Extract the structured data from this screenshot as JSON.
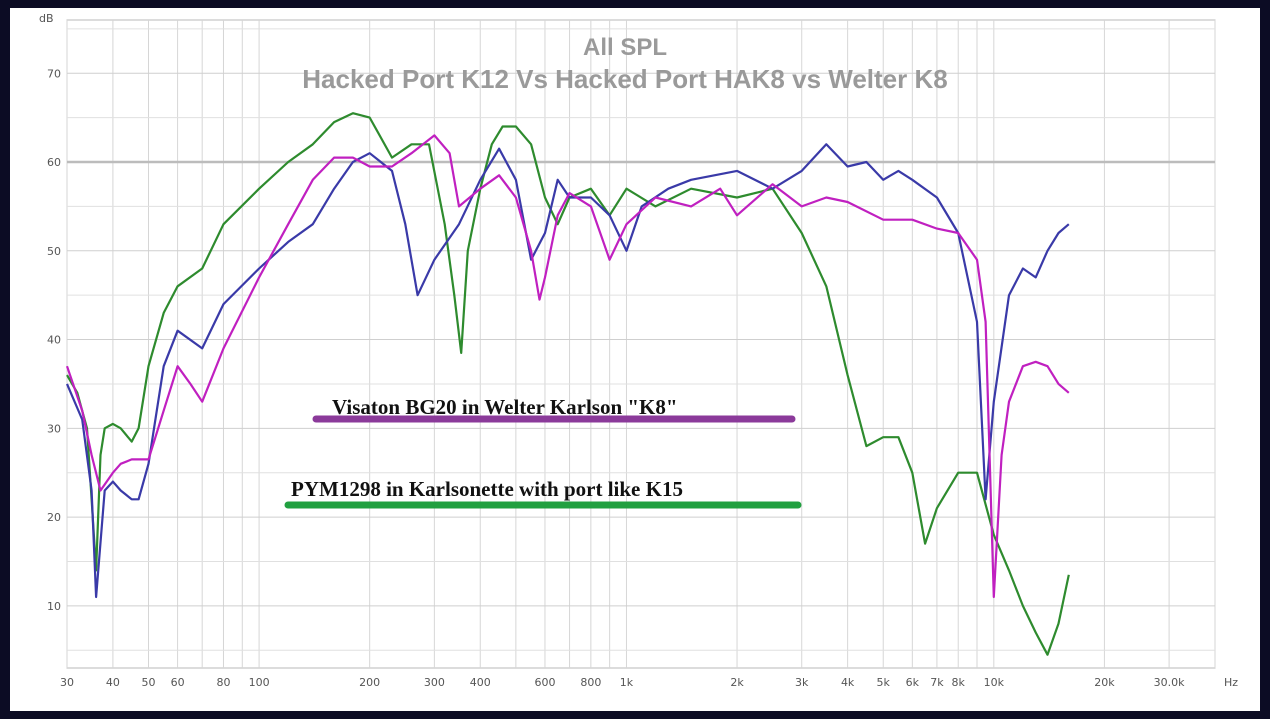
{
  "chart_data": {
    "type": "line",
    "title": "All SPL",
    "subtitle": "Hacked Port K12 Vs Hacked Port HAK8 vs Welter K8",
    "ylabel": "dB",
    "xlabel": "Hz",
    "x_scale": "log",
    "xlim": [
      30,
      40000
    ],
    "ylim": [
      3,
      76
    ],
    "grid": true,
    "y_ticks": [
      {
        "value": 10,
        "label": "10"
      },
      {
        "value": 20,
        "label": "20"
      },
      {
        "value": 30,
        "label": "30"
      },
      {
        "value": 40,
        "label": "40"
      },
      {
        "value": 50,
        "label": "50"
      },
      {
        "value": 60,
        "label": "60"
      },
      {
        "value": 70,
        "label": "70"
      }
    ],
    "y_unit_label": "dB",
    "x_ticks": [
      {
        "value": 30,
        "label": "30"
      },
      {
        "value": 40,
        "label": "40"
      },
      {
        "value": 50,
        "label": "50"
      },
      {
        "value": 60,
        "label": "60"
      },
      {
        "value": 80,
        "label": "80"
      },
      {
        "value": 100,
        "label": "100"
      },
      {
        "value": 200,
        "label": "200"
      },
      {
        "value": 300,
        "label": "300"
      },
      {
        "value": 400,
        "label": "400"
      },
      {
        "value": 600,
        "label": "600"
      },
      {
        "value": 800,
        "label": "800"
      },
      {
        "value": 1000,
        "label": "1k"
      },
      {
        "value": 2000,
        "label": "2k"
      },
      {
        "value": 3000,
        "label": "3k"
      },
      {
        "value": 4000,
        "label": "4k"
      },
      {
        "value": 5000,
        "label": "5k"
      },
      {
        "value": 6000,
        "label": "6k"
      },
      {
        "value": 7000,
        "label": "7k"
      },
      {
        "value": 8000,
        "label": "8k"
      },
      {
        "value": 10000,
        "label": "10k"
      },
      {
        "value": 20000,
        "label": "20k"
      },
      {
        "value": 30000,
        "label": "30.0k"
      }
    ],
    "x_unit_label": "Hz",
    "annotations": [
      {
        "text": "Visaton BG20 in Welter Karlson \"K8\"",
        "color": "#8b3a9a"
      },
      {
        "text": "PYM1298 in Karlsonette with port like K15",
        "color": "#21a040"
      }
    ],
    "series": [
      {
        "color": "#2e8b2e",
        "points": [
          [
            30,
            36
          ],
          [
            32,
            34
          ],
          [
            34,
            30
          ],
          [
            35,
            22
          ],
          [
            36,
            14
          ],
          [
            37,
            27
          ],
          [
            38,
            30
          ],
          [
            40,
            30.5
          ],
          [
            42,
            30
          ],
          [
            45,
            28.5
          ],
          [
            47,
            30
          ],
          [
            50,
            37
          ],
          [
            55,
            43
          ],
          [
            60,
            46
          ],
          [
            70,
            48
          ],
          [
            80,
            53
          ],
          [
            100,
            57
          ],
          [
            120,
            60
          ],
          [
            140,
            62
          ],
          [
            160,
            64.5
          ],
          [
            180,
            65.5
          ],
          [
            200,
            65
          ],
          [
            230,
            60.5
          ],
          [
            260,
            62
          ],
          [
            290,
            62
          ],
          [
            320,
            53
          ],
          [
            340,
            45
          ],
          [
            355,
            38.5
          ],
          [
            370,
            50
          ],
          [
            400,
            57
          ],
          [
            430,
            62
          ],
          [
            460,
            64
          ],
          [
            500,
            64
          ],
          [
            550,
            62
          ],
          [
            600,
            56
          ],
          [
            650,
            53
          ],
          [
            700,
            56
          ],
          [
            800,
            57
          ],
          [
            900,
            54
          ],
          [
            1000,
            57
          ],
          [
            1200,
            55
          ],
          [
            1500,
            57
          ],
          [
            2000,
            56
          ],
          [
            2500,
            57
          ],
          [
            3000,
            52
          ],
          [
            3500,
            46
          ],
          [
            4000,
            36
          ],
          [
            4500,
            28
          ],
          [
            5000,
            29
          ],
          [
            5500,
            29
          ],
          [
            6000,
            25
          ],
          [
            6500,
            17
          ],
          [
            7000,
            21
          ],
          [
            8000,
            25
          ],
          [
            9000,
            25
          ],
          [
            10000,
            18
          ],
          [
            11000,
            14
          ],
          [
            12000,
            10
          ],
          [
            13000,
            7
          ],
          [
            14000,
            4.5
          ],
          [
            15000,
            8
          ],
          [
            16000,
            13.5
          ]
        ]
      },
      {
        "color": "#3a3aa8",
        "points": [
          [
            30,
            35
          ],
          [
            33,
            31
          ],
          [
            35,
            23
          ],
          [
            36,
            11
          ],
          [
            38,
            23
          ],
          [
            40,
            24
          ],
          [
            42,
            23
          ],
          [
            45,
            22
          ],
          [
            47,
            22
          ],
          [
            50,
            26
          ],
          [
            55,
            37
          ],
          [
            60,
            41
          ],
          [
            70,
            39
          ],
          [
            80,
            44
          ],
          [
            100,
            48
          ],
          [
            120,
            51
          ],
          [
            140,
            53
          ],
          [
            160,
            57
          ],
          [
            180,
            60
          ],
          [
            200,
            61
          ],
          [
            230,
            59
          ],
          [
            250,
            53
          ],
          [
            270,
            45
          ],
          [
            300,
            49
          ],
          [
            350,
            53
          ],
          [
            400,
            58
          ],
          [
            450,
            61.5
          ],
          [
            500,
            58
          ],
          [
            550,
            49
          ],
          [
            600,
            52
          ],
          [
            650,
            58
          ],
          [
            700,
            56
          ],
          [
            800,
            56
          ],
          [
            900,
            54
          ],
          [
            1000,
            50
          ],
          [
            1100,
            55
          ],
          [
            1300,
            57
          ],
          [
            1500,
            58
          ],
          [
            2000,
            59
          ],
          [
            2500,
            57
          ],
          [
            3000,
            59
          ],
          [
            3500,
            62
          ],
          [
            4000,
            59.5
          ],
          [
            4500,
            60
          ],
          [
            5000,
            58
          ],
          [
            5500,
            59
          ],
          [
            6000,
            58
          ],
          [
            7000,
            56
          ],
          [
            8000,
            52
          ],
          [
            9000,
            42
          ],
          [
            9500,
            22
          ],
          [
            10000,
            33
          ],
          [
            11000,
            45
          ],
          [
            12000,
            48
          ],
          [
            13000,
            47
          ],
          [
            14000,
            50
          ],
          [
            15000,
            52
          ],
          [
            16000,
            53
          ]
        ]
      },
      {
        "color": "#c020c0",
        "points": [
          [
            30,
            37
          ],
          [
            33,
            32
          ],
          [
            35,
            27
          ],
          [
            37,
            23
          ],
          [
            40,
            25
          ],
          [
            42,
            26
          ],
          [
            45,
            26.5
          ],
          [
            50,
            26.5
          ],
          [
            55,
            32
          ],
          [
            60,
            37
          ],
          [
            65,
            35
          ],
          [
            70,
            33
          ],
          [
            80,
            39
          ],
          [
            100,
            47
          ],
          [
            120,
            53
          ],
          [
            140,
            58
          ],
          [
            160,
            60.5
          ],
          [
            180,
            60.5
          ],
          [
            200,
            59.5
          ],
          [
            230,
            59.5
          ],
          [
            260,
            61
          ],
          [
            300,
            63
          ],
          [
            330,
            61
          ],
          [
            350,
            55
          ],
          [
            400,
            57
          ],
          [
            450,
            58.5
          ],
          [
            500,
            56
          ],
          [
            550,
            50
          ],
          [
            580,
            44.5
          ],
          [
            600,
            47
          ],
          [
            650,
            54
          ],
          [
            700,
            56.5
          ],
          [
            800,
            55
          ],
          [
            900,
            49
          ],
          [
            1000,
            53
          ],
          [
            1200,
            56
          ],
          [
            1500,
            55
          ],
          [
            1800,
            57
          ],
          [
            2000,
            54
          ],
          [
            2500,
            57.5
          ],
          [
            3000,
            55
          ],
          [
            3500,
            56
          ],
          [
            4000,
            55.5
          ],
          [
            5000,
            53.5
          ],
          [
            6000,
            53.5
          ],
          [
            7000,
            52.5
          ],
          [
            8000,
            52
          ],
          [
            9000,
            49
          ],
          [
            9500,
            42
          ],
          [
            10000,
            11
          ],
          [
            10500,
            27
          ],
          [
            11000,
            33
          ],
          [
            12000,
            37
          ],
          [
            13000,
            37.5
          ],
          [
            14000,
            37
          ],
          [
            15000,
            35
          ],
          [
            16000,
            34
          ]
        ]
      }
    ]
  }
}
